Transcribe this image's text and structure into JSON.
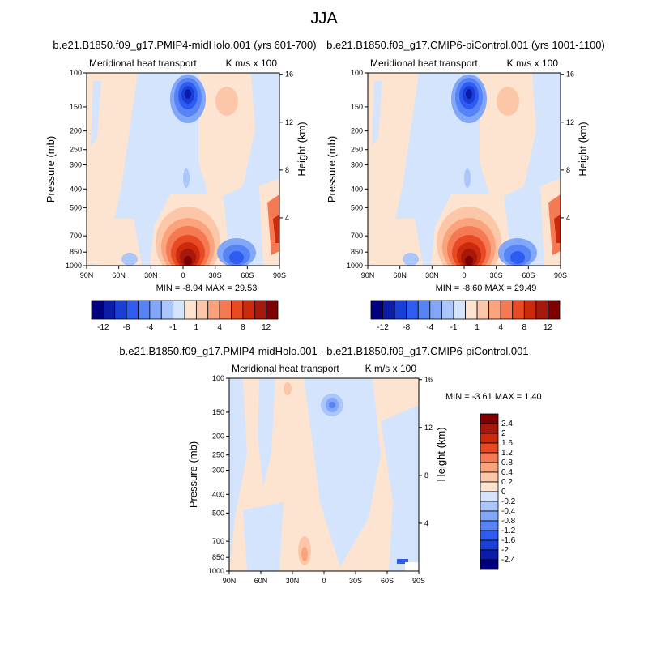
{
  "title": "JJA",
  "colors": {
    "neg": [
      "#00007f",
      "#0b1da8",
      "#1a3fd6",
      "#2f5cf0",
      "#5683f5",
      "#82a6f8",
      "#abc6fa",
      "#d4e4fc"
    ],
    "pos": [
      "#fde4d1",
      "#fcc7a8",
      "#faa37c",
      "#f57a53",
      "#e84b24",
      "#cb2a0c",
      "#a5180a",
      "#7f0000"
    ]
  },
  "chart_data": [
    {
      "type": "heatmap",
      "title": "b.e21.B1850.f09_g17.PMIP4-midHolo.001 (yrs 601-700)",
      "left_label": "Meridional heat transport",
      "right_label": "K m/s x 100",
      "xlabel": "",
      "ylabel": "Pressure (mb)",
      "ylabel_right": "Height (km)",
      "x_ticks": [
        "90N",
        "60N",
        "30N",
        "0",
        "30S",
        "60S",
        "90S"
      ],
      "y_ticks": [
        "100",
        "150",
        "200",
        "250",
        "300",
        "400",
        "500",
        "700",
        "850",
        "1000"
      ],
      "right_ticks": [
        "16",
        "12",
        "8",
        "4"
      ],
      "stats": "MIN =  -8.94   MAX =  29.53",
      "colorbar_labels": [
        "-12",
        "-8",
        "-4",
        "-1",
        "1",
        "4",
        "8",
        "12"
      ]
    },
    {
      "type": "heatmap",
      "title": "b.e21.B1850.f09_g17.CMIP6-piControl.001 (yrs 1001-1100)",
      "left_label": "Meridional heat transport",
      "right_label": "K m/s x 100",
      "xlabel": "",
      "ylabel": "Pressure (mb)",
      "ylabel_right": "Height (km)",
      "x_ticks": [
        "90N",
        "60N",
        "30N",
        "0",
        "30S",
        "60S",
        "90S"
      ],
      "y_ticks": [
        "100",
        "150",
        "200",
        "250",
        "300",
        "400",
        "500",
        "700",
        "850",
        "1000"
      ],
      "right_ticks": [
        "16",
        "12",
        "8",
        "4"
      ],
      "stats": "MIN =  -8.60   MAX =  29.49",
      "colorbar_labels": [
        "-12",
        "-8",
        "-4",
        "-1",
        "1",
        "4",
        "8",
        "12"
      ]
    },
    {
      "type": "heatmap",
      "title": "b.e21.B1850.f09_g17.PMIP4-midHolo.001 - b.e21.B1850.f09_g17.CMIP6-piControl.001",
      "left_label": "Meridional heat transport",
      "right_label": "K m/s x 100",
      "xlabel": "",
      "ylabel": "Pressure (mb)",
      "ylabel_right": "Height (km)",
      "x_ticks": [
        "90N",
        "60N",
        "30N",
        "0",
        "30S",
        "60S",
        "90S"
      ],
      "y_ticks": [
        "100",
        "150",
        "200",
        "250",
        "300",
        "400",
        "500",
        "700",
        "850",
        "1000"
      ],
      "right_ticks": [
        "16",
        "12",
        "8",
        "4"
      ],
      "stats": "MIN =  -3.61   MAX =   1.40",
      "colorbar_labels": [
        "2.4",
        "2",
        "1.6",
        "1.2",
        "0.8",
        "0.4",
        "0.2",
        "0",
        "-0.2",
        "-0.4",
        "-0.8",
        "-1.2",
        "-1.6",
        "-2",
        "-2.4"
      ]
    }
  ]
}
